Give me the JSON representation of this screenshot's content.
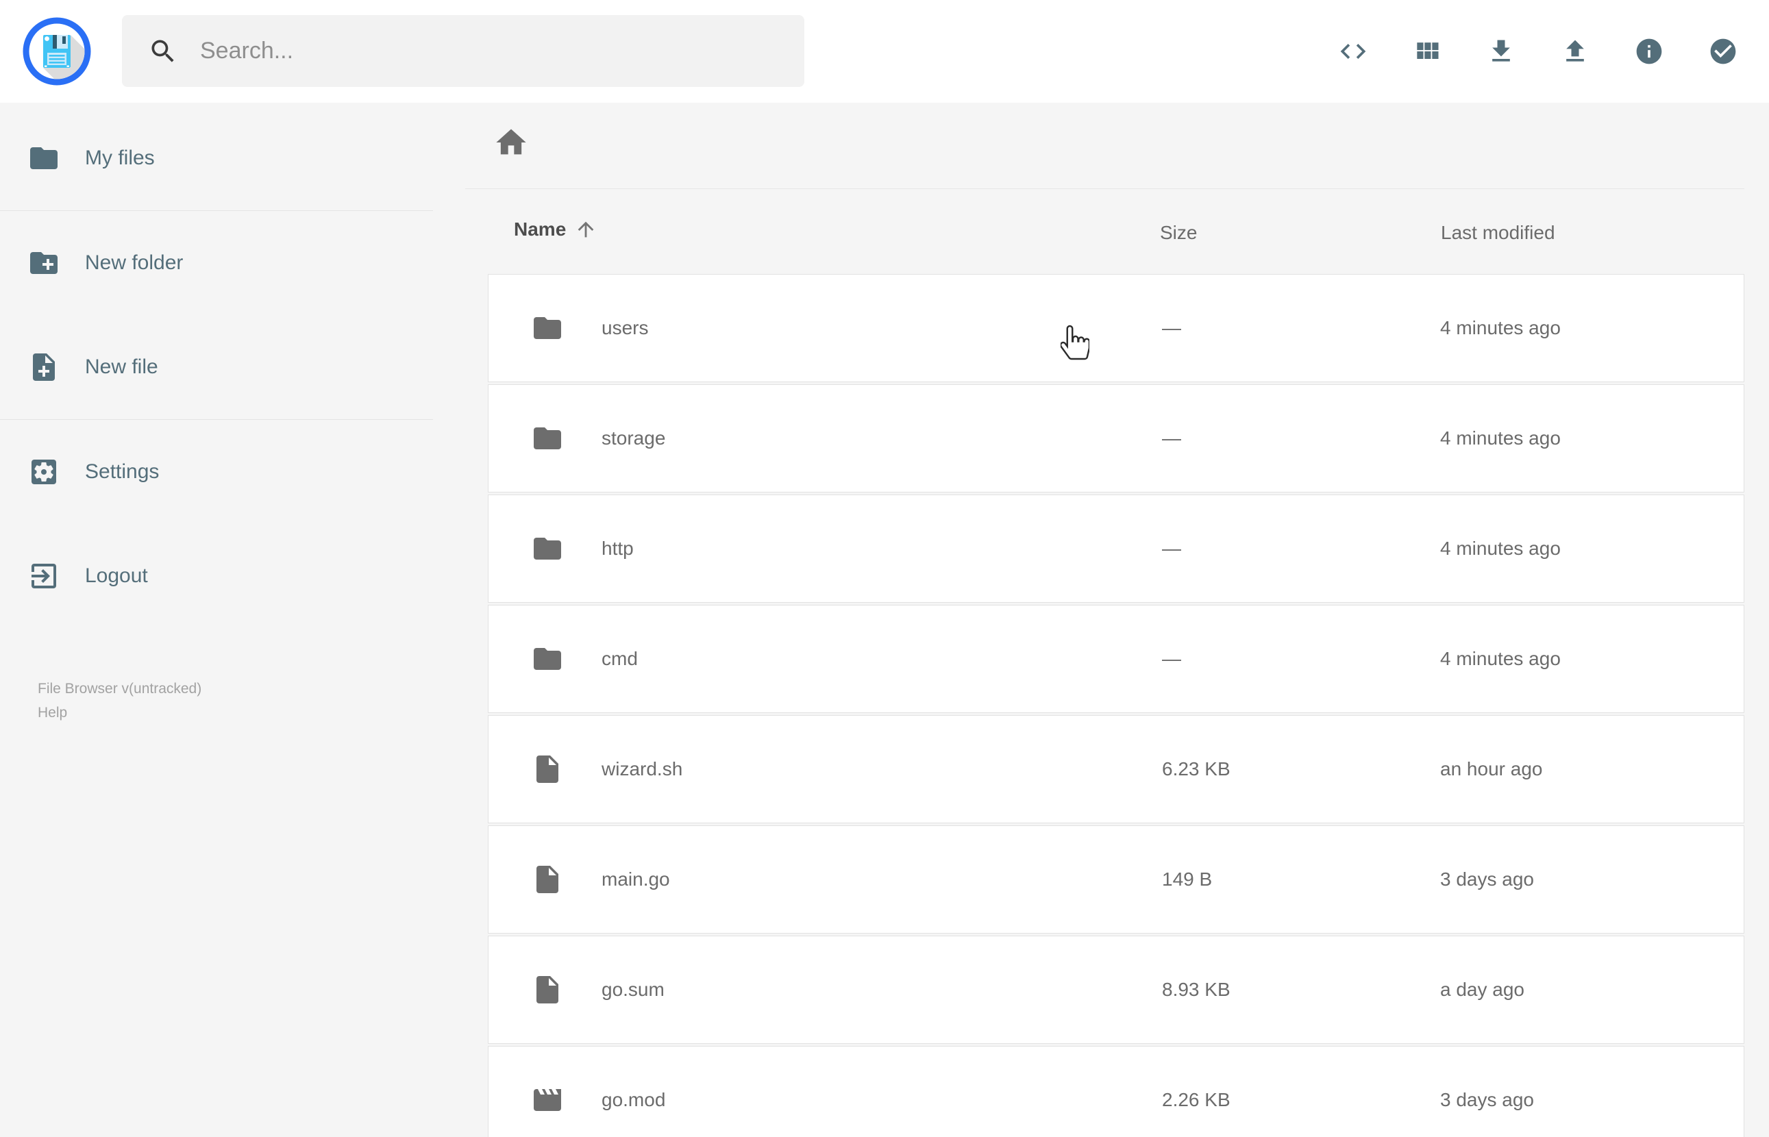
{
  "topbar": {
    "search_placeholder": "Search...",
    "action_icons": [
      {
        "name": "code-icon"
      },
      {
        "name": "grid-view-icon"
      },
      {
        "name": "download-icon"
      },
      {
        "name": "upload-icon"
      },
      {
        "name": "info-icon"
      },
      {
        "name": "select-multiple-icon"
      }
    ]
  },
  "sidebar": {
    "items": [
      {
        "label": "My files",
        "icon": "folder-icon"
      },
      {
        "label": "New folder",
        "icon": "create-new-folder-icon"
      },
      {
        "label": "New file",
        "icon": "note-add-icon"
      },
      {
        "label": "Settings",
        "icon": "settings-icon"
      },
      {
        "label": "Logout",
        "icon": "logout-icon"
      }
    ],
    "footer": {
      "version": "File Browser v(untracked)",
      "help": "Help"
    }
  },
  "listing": {
    "columns": {
      "name": "Name",
      "size": "Size",
      "modified": "Last modified"
    },
    "sort": {
      "column": "name",
      "direction": "asc"
    },
    "rows": [
      {
        "name": "users",
        "type": "folder",
        "size": "—",
        "modified": "4 minutes ago"
      },
      {
        "name": "storage",
        "type": "folder",
        "size": "—",
        "modified": "4 minutes ago"
      },
      {
        "name": "http",
        "type": "folder",
        "size": "—",
        "modified": "4 minutes ago"
      },
      {
        "name": "cmd",
        "type": "folder",
        "size": "—",
        "modified": "4 minutes ago"
      },
      {
        "name": "wizard.sh",
        "type": "file",
        "size": "6.23 KB",
        "modified": "an hour ago"
      },
      {
        "name": "main.go",
        "type": "file",
        "size": "149 B",
        "modified": "3 days ago"
      },
      {
        "name": "go.sum",
        "type": "file",
        "size": "8.93 KB",
        "modified": "a day ago"
      },
      {
        "name": "go.mod",
        "type": "movie",
        "size": "2.26 KB",
        "modified": "3 days ago"
      }
    ]
  },
  "colors": {
    "accent_blue": "#2a6ff5",
    "logo_light_blue": "#41c4f5",
    "slate_icon": "#546e7a",
    "page_bg": "#f5f5f5",
    "row_border": "#e2e2e2",
    "text_gray": "#6b6b6b"
  }
}
